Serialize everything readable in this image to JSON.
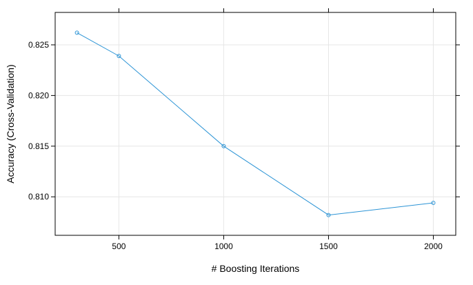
{
  "chart_data": {
    "type": "line",
    "xlabel": "# Boosting Iterations",
    "ylabel": "Accuracy (Cross-Validation)",
    "x": [
      300,
      500,
      1000,
      1500,
      2000
    ],
    "series": [
      {
        "values": [
          0.8262,
          0.8239,
          0.815,
          0.8082,
          0.8094
        ]
      }
    ],
    "x_ticks": [
      500,
      1000,
      1500,
      2000
    ],
    "x_tick_labels": [
      "500",
      "1000",
      "1500",
      "2000"
    ],
    "y_ticks": [
      0.81,
      0.815,
      0.82,
      0.825
    ],
    "y_tick_labels": [
      "0.810",
      "0.815",
      "0.820",
      "0.825"
    ],
    "xlim": [
      196,
      2107
    ],
    "ylim": [
      0.8062,
      0.8282
    ],
    "grid": true,
    "colors": {
      "series": "#2a93d5",
      "grid": "#e6e6e6",
      "axis": "#000000"
    },
    "point_marker": "open-circle"
  }
}
